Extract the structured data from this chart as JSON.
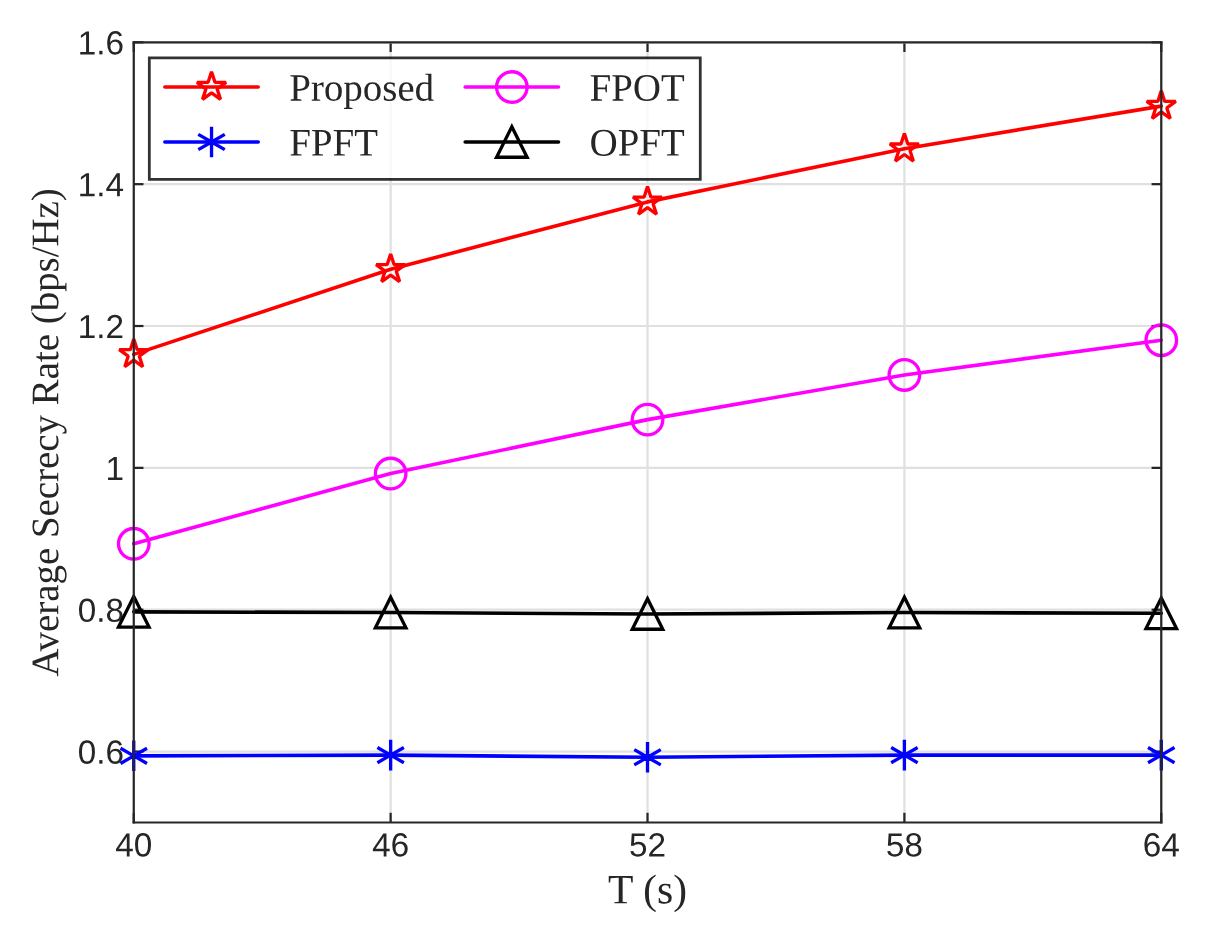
{
  "chart_data": {
    "type": "line",
    "xlabel": "T (s)",
    "ylabel": "Average Secrecy Rate (bps/Hz)",
    "x": [
      40,
      46,
      52,
      58,
      64
    ],
    "series": [
      {
        "name": "Proposed",
        "color": "#ff0000",
        "marker": "star",
        "values": [
          1.16,
          1.28,
          1.375,
          1.45,
          1.51
        ]
      },
      {
        "name": "FPFT",
        "color": "#0000ff",
        "marker": "cross",
        "values": [
          0.594,
          0.595,
          0.592,
          0.595,
          0.595
        ]
      },
      {
        "name": "FPOT",
        "color": "#ff00ff",
        "marker": "circle",
        "values": [
          0.893,
          0.992,
          1.068,
          1.131,
          1.18
        ]
      },
      {
        "name": "OPFT",
        "color": "#000000",
        "marker": "triangle",
        "values": [
          0.797,
          0.796,
          0.794,
          0.796,
          0.795
        ]
      }
    ],
    "xlim": [
      40,
      64
    ],
    "xticks": [
      40,
      46,
      52,
      58,
      64
    ],
    "ylim": [
      0.5,
      1.6
    ],
    "yticks": [
      0.6,
      0.8,
      1,
      1.2,
      1.4,
      1.6
    ],
    "grid": true,
    "legend": "top left",
    "line_style": "solid"
  }
}
